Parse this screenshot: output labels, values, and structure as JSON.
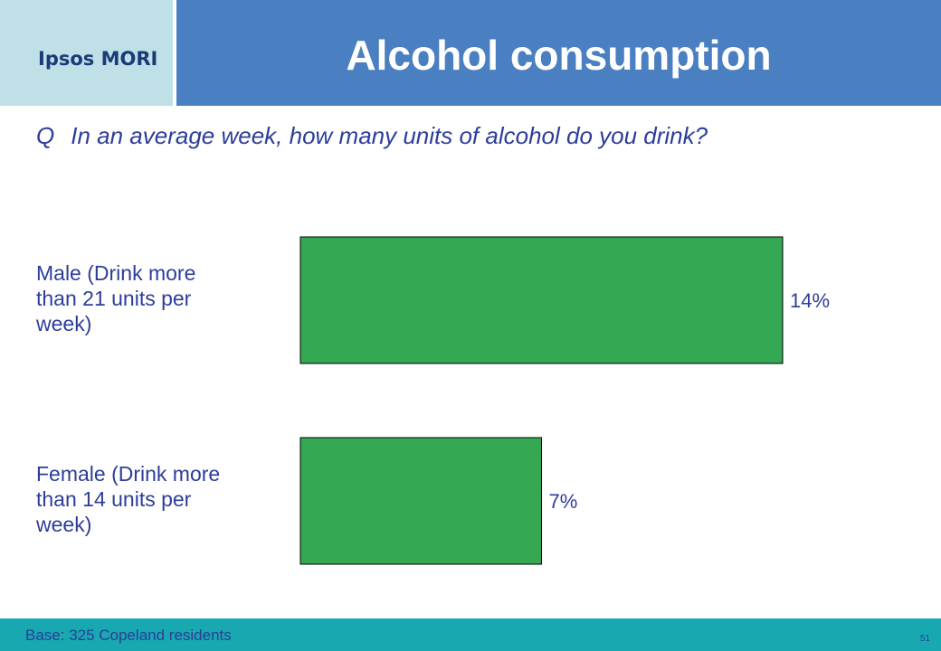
{
  "brand": {
    "logo_text": "Ipsos MORI",
    "colors": {
      "logo_bg": "#bfe0e6",
      "header_bg": "#4a7fc1",
      "footer_bg": "#17a8b0",
      "text": "#2d3d9a",
      "bar": "#35a853"
    }
  },
  "header": {
    "title": "Alcohol consumption"
  },
  "question": {
    "prefix": "Q",
    "text": "In an average week, how many units of alcohol do you drink?"
  },
  "chart_data": {
    "type": "bar",
    "orientation": "horizontal",
    "categories": [
      [
        "Male (Drink more",
        "than 21 units per",
        "week)"
      ],
      [
        "Female (Drink more",
        "than 14 units per",
        "week)"
      ]
    ],
    "values": [
      14,
      7
    ],
    "data_labels": [
      "14%",
      "7%"
    ],
    "xlim": [
      0,
      14
    ],
    "grid": false,
    "bar_color": "#35a853"
  },
  "footer": {
    "base_text": "Base: 325 Copeland residents",
    "page_number": "51"
  }
}
